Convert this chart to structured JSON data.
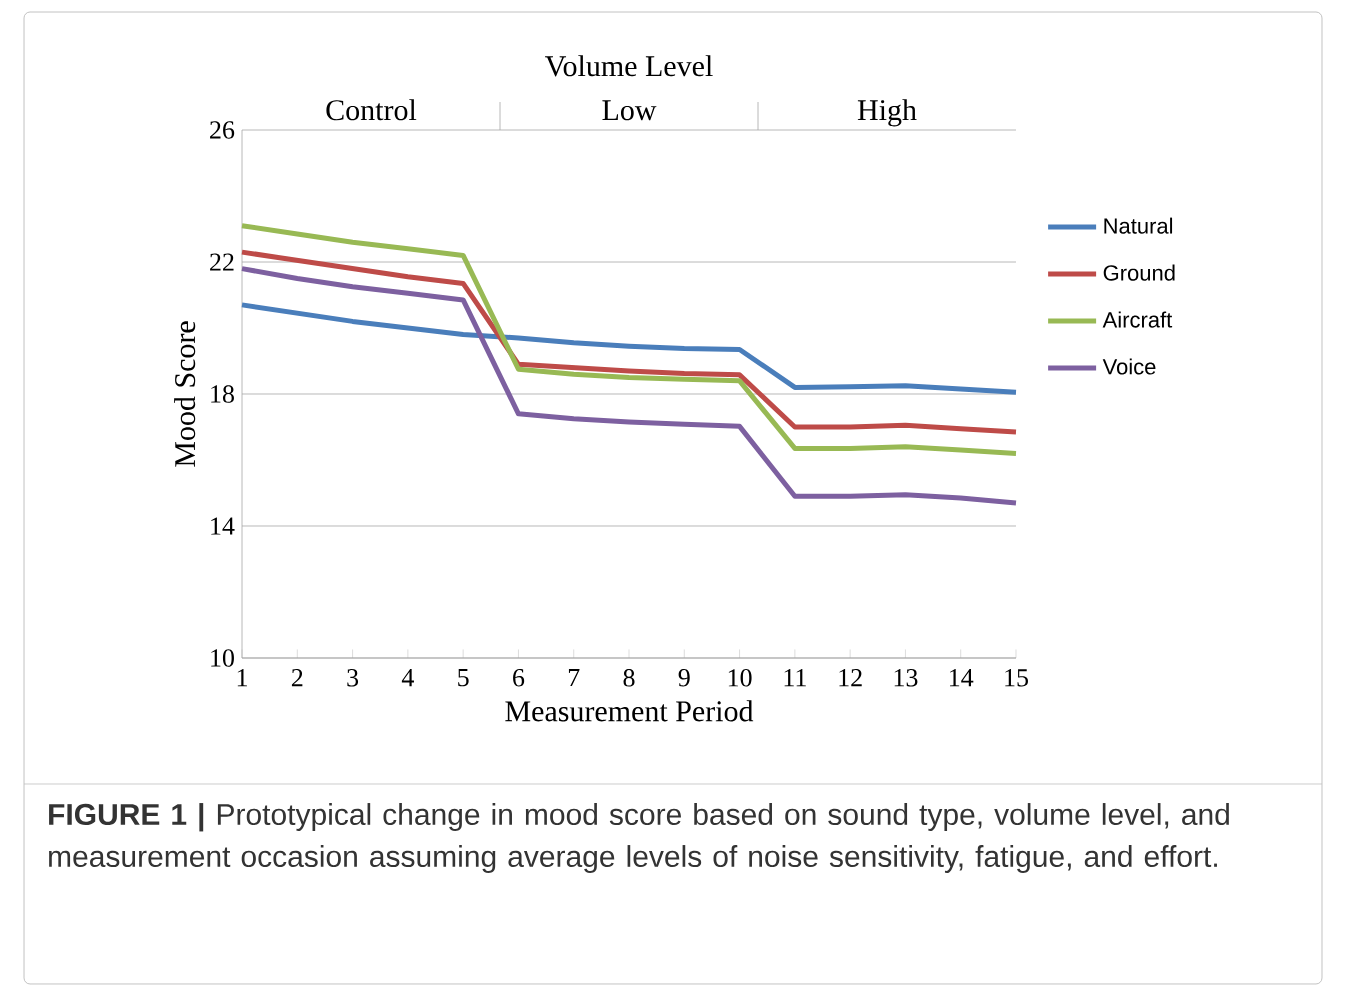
{
  "chart_data": {
    "type": "line",
    "xlabel": "Measurement Period",
    "ylabel": "Mood Score",
    "x": [
      1,
      2,
      3,
      4,
      5,
      6,
      7,
      8,
      9,
      10,
      11,
      12,
      13,
      14,
      15
    ],
    "series": [
      {
        "name": "Natural",
        "color": "#4a7ebb",
        "values": [
          20.7,
          20.45,
          20.2,
          20.0,
          19.8,
          19.7,
          19.55,
          19.45,
          19.38,
          19.35,
          18.2,
          18.22,
          18.25,
          18.15,
          18.05
        ]
      },
      {
        "name": "Ground",
        "color": "#be4b48",
        "values": [
          22.3,
          22.05,
          21.8,
          21.55,
          21.35,
          18.9,
          18.8,
          18.7,
          18.62,
          18.58,
          17.0,
          17.0,
          17.05,
          16.95,
          16.85
        ]
      },
      {
        "name": "Aircraft",
        "color": "#98b954",
        "values": [
          23.1,
          22.85,
          22.6,
          22.4,
          22.2,
          18.75,
          18.6,
          18.5,
          18.45,
          18.4,
          16.35,
          16.35,
          16.4,
          16.3,
          16.2
        ]
      },
      {
        "name": "Voice",
        "color": "#7d60a0",
        "values": [
          21.8,
          21.5,
          21.25,
          21.05,
          20.85,
          17.4,
          17.25,
          17.15,
          17.08,
          17.02,
          14.9,
          14.9,
          14.95,
          14.85,
          14.7
        ]
      }
    ],
    "xlim": [
      1,
      15
    ],
    "xticks": [
      1,
      2,
      3,
      4,
      5,
      6,
      7,
      8,
      9,
      10,
      11,
      12,
      13,
      14,
      15
    ],
    "ylim": [
      10,
      26
    ],
    "yticks": [
      10,
      14,
      18,
      22,
      26
    ],
    "grid": "y",
    "legend": "right",
    "marker": "none",
    "line_style": "solid",
    "annotations": [
      "Volume Level",
      "Control",
      "Low",
      "High",
      "**FIGURE 1 |** Prototypical change in mood score based on sound type, volume level, and measurement occasion assuming average levels of noise sensitivity, fatigue, and effort."
    ]
  }
}
